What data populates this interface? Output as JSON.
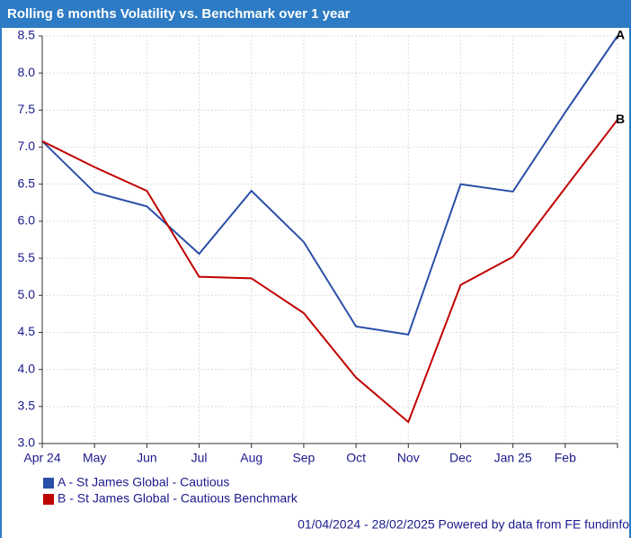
{
  "chart_data": {
    "type": "line",
    "title": "Rolling 6 months Volatility vs. Benchmark over 1 year",
    "categories": [
      "Apr 24",
      "May",
      "Jun",
      "Jul",
      "Aug",
      "Sep",
      "Oct",
      "Nov",
      "Dec",
      "Jan 25",
      "Feb",
      null
    ],
    "series": [
      {
        "name": "A - St James Global - Cautious",
        "label": "A",
        "color": "#2a4fa8",
        "values": [
          7.08,
          6.39,
          6.2,
          5.56,
          6.41,
          5.72,
          4.58,
          4.47,
          6.5,
          6.4,
          7.47,
          8.5
        ]
      },
      {
        "name": "B - St James Global - Cautious Benchmark",
        "label": "B",
        "color": "#c00000",
        "values": [
          7.08,
          6.73,
          6.41,
          5.25,
          5.23,
          4.76,
          3.89,
          3.29,
          5.14,
          5.52,
          6.45,
          7.37
        ]
      }
    ],
    "ylim": [
      3,
      8.5
    ],
    "yticks": [
      {
        "value": 3,
        "label": "3.0"
      },
      3.5,
      {
        "value": 4,
        "label": "4.0"
      },
      4.5,
      {
        "value": 5,
        "label": "5.0"
      },
      5.5,
      {
        "value": 6,
        "label": "6.0"
      },
      6.5,
      {
        "value": 7,
        "label": "7.0"
      },
      7.5,
      {
        "value": 8,
        "label": "8.0"
      },
      8.5
    ],
    "grid": true,
    "footer": "01/04/2024 - 28/02/2025 Powered by data from FE fundinfo"
  }
}
